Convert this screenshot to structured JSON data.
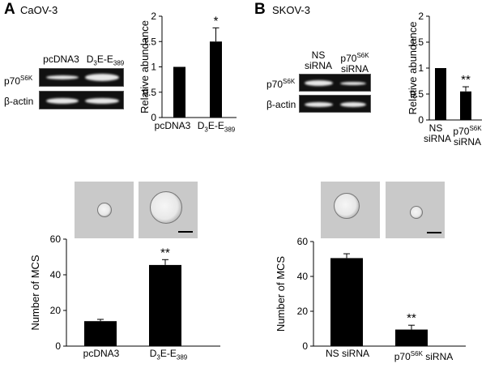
{
  "panels": [
    {
      "letter": "A",
      "cell_line": "CaOV-3",
      "blot": {
        "lanes": [
          "pcDNA3",
          "D3E-E389"
        ],
        "rows": [
          "p70S6K",
          "β-actin"
        ]
      },
      "microscopy_lanes": [
        "pcDNA3",
        "D3E-E389"
      ]
    },
    {
      "letter": "B",
      "cell_line": "SKOV-3",
      "blot": {
        "lanes": [
          "NS siRNA",
          "p70S6K siRNA"
        ],
        "rows": [
          "p70S6K",
          "β-actin"
        ]
      },
      "microscopy_lanes": [
        "NS siRNA",
        "p70S6K siRNA"
      ]
    }
  ],
  "chart_data": [
    {
      "id": "chartA1",
      "type": "bar",
      "categories": [
        "pcDNA3",
        "D3E-E389"
      ],
      "values": [
        1.0,
        1.5
      ],
      "errors": [
        0,
        0.27
      ],
      "annotations": [
        "",
        "*"
      ],
      "ylabel": "Relative abundance",
      "ylim": [
        0,
        2
      ],
      "yticks": [
        "0",
        "0.5",
        "1",
        "1.5",
        "2"
      ],
      "color": "#000000"
    },
    {
      "id": "chartB1",
      "type": "bar",
      "categories": [
        "NS siRNA",
        "p70S6K siRNA"
      ],
      "values": [
        1.0,
        0.55
      ],
      "errors": [
        0,
        0.09
      ],
      "annotations": [
        "",
        "**"
      ],
      "ylabel": "Relative abundance",
      "ylim": [
        0,
        2
      ],
      "yticks": [
        "0",
        "0.5",
        "1",
        "1.5",
        "2"
      ],
      "color": "#000000"
    },
    {
      "id": "chartA2",
      "type": "bar",
      "categories": [
        "pcDNA3",
        "D3E-E389"
      ],
      "values": [
        14,
        45.5
      ],
      "errors": [
        1.0,
        3.0
      ],
      "annotations": [
        "",
        "**"
      ],
      "ylabel": "Number of MCS",
      "ylim": [
        0,
        60
      ],
      "yticks": [
        "0",
        "20",
        "40",
        "60"
      ],
      "color": "#000000"
    },
    {
      "id": "chartB2",
      "type": "bar",
      "categories": [
        "NS siRNA",
        "p70S6K siRNA"
      ],
      "values": [
        50.5,
        9.5
      ],
      "errors": [
        2.5,
        2.5
      ],
      "annotations": [
        "",
        "**"
      ],
      "ylabel": "Number of MCS",
      "ylim": [
        0,
        60
      ],
      "yticks": [
        "0",
        "20",
        "40",
        "60"
      ],
      "color": "#000000"
    }
  ]
}
